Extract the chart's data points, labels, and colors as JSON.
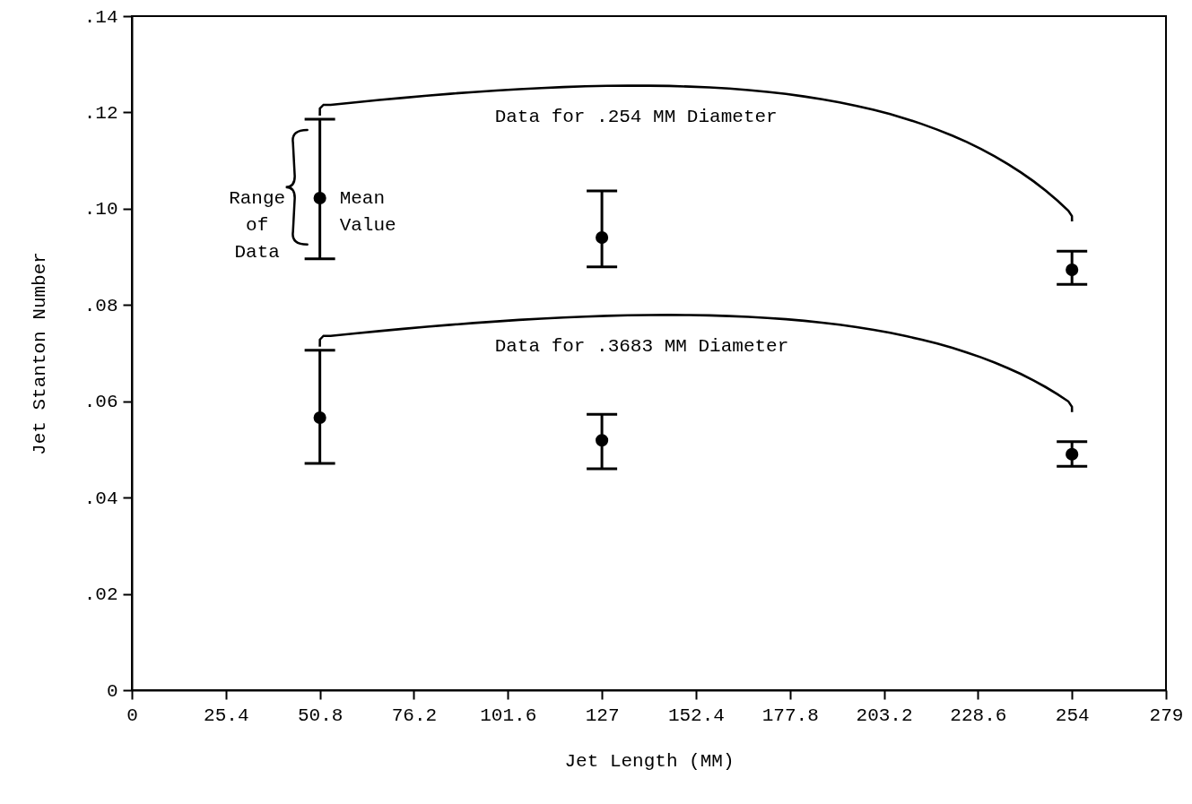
{
  "chart_data": {
    "type": "scatter",
    "xlabel": "Jet Length (MM)",
    "ylabel": "Jet Stanton Number",
    "xlim": [
      0,
      279.4
    ],
    "xticks": [
      0,
      25.4,
      50.8,
      76.2,
      101.6,
      127,
      152.4,
      177.8,
      203.2,
      228.6,
      254,
      {
        "value": 279.4,
        "label": "279"
      }
    ],
    "ylim": [
      0,
      0.14
    ],
    "yticks": [
      {
        "value": 0,
        "label": "0"
      },
      {
        "value": 0.02,
        "label": ".02"
      },
      {
        "value": 0.04,
        "label": ".04"
      },
      {
        "value": 0.06,
        "label": ".06"
      },
      {
        "value": 0.08,
        "label": ".08"
      },
      {
        "value": 0.1,
        "label": ".10"
      },
      {
        "value": 0.12,
        "label": ".12"
      },
      {
        "value": 0.14,
        "label": ".14"
      }
    ],
    "x": [
      50.8,
      127,
      254
    ],
    "series": [
      {
        "color": "#000000",
        "values": [
          0.1022,
          0.094,
          0.0873
        ],
        "errors": [
          [
            0.0896,
            0.1186
          ],
          [
            0.0879,
            0.1037
          ],
          [
            0.0843,
            0.0912
          ]
        ]
      },
      {
        "color": "#000000",
        "values": [
          0.0566,
          0.0519,
          0.049
        ],
        "errors": [
          [
            0.0471,
            0.0706
          ],
          [
            0.046,
            0.0573
          ],
          [
            0.0465,
            0.0516
          ]
        ]
      }
    ],
    "marker": "circle",
    "grid": false,
    "annotations": [
      "Data for .254 MM Diameter",
      "Data for .3683 MM Diameter",
      "Range\nof\nData",
      "Mean\nValue"
    ]
  }
}
